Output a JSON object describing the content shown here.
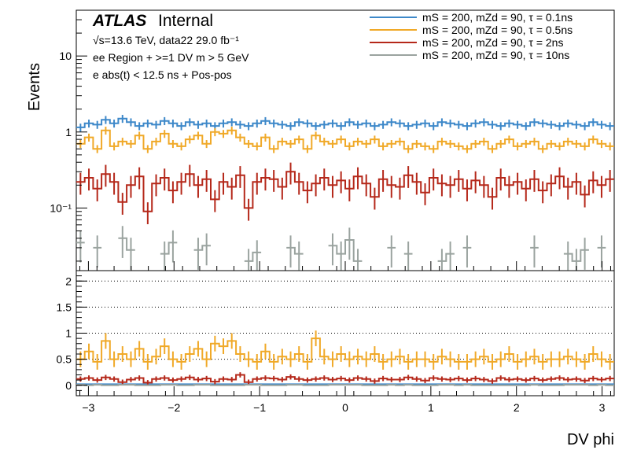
{
  "chart_data": {
    "type": "step",
    "atlas_label": "ATLAS",
    "atlas_status": "Internal",
    "info_lines": [
      "√s=13.6 TeV, data22 29.0 fb⁻¹",
      "ee Region + >=1 DV m > 5 GeV",
      "e abs(t) < 12.5 ns + Pos-pos"
    ],
    "xlabel": "DV phi",
    "ylabel": "Events",
    "x_range": [
      -3.1416,
      3.1416
    ],
    "x_ticks": [
      "−3",
      "−2",
      "−1",
      "0",
      "1",
      "2",
      "3"
    ],
    "top_panel": {
      "y_scale": "log",
      "y_range": [
        0.015,
        40
      ],
      "y_ticks": [
        "10⁻¹",
        "1",
        "10"
      ]
    },
    "ratio_panel": {
      "y_range": [
        -0.2,
        2.2
      ],
      "y_ticks": [
        "0",
        "0.5",
        "1",
        "1.5",
        "2"
      ],
      "gridlines": [
        0.5,
        1.0,
        1.5,
        2.0
      ]
    },
    "n_bins": 64,
    "series": [
      {
        "name": "mS = 200, mZd = 90, τ = 0.1ns",
        "color": "#3d88c9",
        "values": [
          1.15,
          1.3,
          1.25,
          1.45,
          1.3,
          1.5,
          1.35,
          1.2,
          1.3,
          1.25,
          1.4,
          1.3,
          1.2,
          1.35,
          1.25,
          1.3,
          1.2,
          1.3,
          1.35,
          1.25,
          1.2,
          1.3,
          1.4,
          1.3,
          1.25,
          1.2,
          1.35,
          1.3,
          1.2,
          1.25,
          1.3,
          1.2,
          1.35,
          1.25,
          1.3,
          1.2,
          1.25,
          1.35,
          1.3,
          1.2,
          1.25,
          1.3,
          1.2,
          1.35,
          1.3,
          1.25,
          1.2,
          1.3,
          1.35,
          1.25,
          1.2,
          1.3,
          1.25,
          1.2,
          1.35,
          1.3,
          1.25,
          1.2,
          1.3,
          1.25,
          1.2,
          1.35,
          1.25,
          1.2
        ],
        "ratio": [
          0.02,
          0.02,
          0.02,
          0.02,
          0.02,
          0.02,
          0.02,
          0.02,
          0.02,
          0.02,
          0.02,
          0.02,
          0.02,
          0.02,
          0.02,
          0.02,
          0.02,
          0.02,
          0.02,
          0.02,
          0.02,
          0.02,
          0.02,
          0.02,
          0.02,
          0.02,
          0.02,
          0.02,
          0.02,
          0.02,
          0.02,
          0.02,
          0.02,
          0.02,
          0.02,
          0.02,
          0.02,
          0.02,
          0.02,
          0.02,
          0.02,
          0.02,
          0.02,
          0.02,
          0.02,
          0.02,
          0.02,
          0.02,
          0.02,
          0.02,
          0.02,
          0.02,
          0.02,
          0.02,
          0.02,
          0.02,
          0.02,
          0.02,
          0.02,
          0.02,
          0.02,
          0.02,
          0.02,
          0.02
        ]
      },
      {
        "name": "mS = 200, mZd = 90, τ = 0.5ns",
        "color": "#f0a928",
        "values": [
          0.7,
          0.85,
          0.6,
          1.05,
          0.65,
          0.75,
          0.7,
          0.9,
          0.6,
          0.75,
          0.95,
          0.7,
          0.65,
          0.8,
          0.9,
          0.7,
          1.0,
          0.95,
          1.05,
          0.85,
          0.7,
          0.65,
          0.85,
          0.6,
          0.75,
          0.7,
          0.8,
          0.6,
          0.9,
          0.75,
          0.7,
          0.8,
          0.65,
          0.75,
          0.7,
          0.8,
          0.65,
          0.7,
          0.75,
          0.6,
          0.7,
          0.65,
          0.6,
          0.75,
          0.7,
          0.65,
          0.6,
          0.7,
          0.75,
          0.6,
          0.7,
          0.8,
          0.65,
          0.7,
          0.75,
          0.6,
          0.7,
          0.65,
          0.75,
          0.7,
          0.65,
          0.8,
          0.7,
          0.65
        ],
        "ratio": [
          0.5,
          0.65,
          0.45,
          0.85,
          0.5,
          0.6,
          0.5,
          0.7,
          0.45,
          0.55,
          0.75,
          0.5,
          0.45,
          0.6,
          0.7,
          0.5,
          0.8,
          0.75,
          0.85,
          0.6,
          0.5,
          0.45,
          0.65,
          0.45,
          0.55,
          0.5,
          0.6,
          0.45,
          0.9,
          0.55,
          0.5,
          0.6,
          0.5,
          0.55,
          0.5,
          0.6,
          0.45,
          0.5,
          0.55,
          0.45,
          0.5,
          0.5,
          0.45,
          0.55,
          0.5,
          0.45,
          0.45,
          0.5,
          0.55,
          0.45,
          0.5,
          0.6,
          0.45,
          0.5,
          0.55,
          0.45,
          0.5,
          0.5,
          0.55,
          0.5,
          0.45,
          0.6,
          0.5,
          0.45
        ]
      },
      {
        "name": "mS = 200, mZd = 90, τ = 2ns",
        "color": "#b5281a",
        "values": [
          0.22,
          0.25,
          0.18,
          0.28,
          0.22,
          0.12,
          0.2,
          0.26,
          0.09,
          0.21,
          0.25,
          0.17,
          0.22,
          0.28,
          0.2,
          0.24,
          0.13,
          0.22,
          0.19,
          0.27,
          0.1,
          0.22,
          0.25,
          0.24,
          0.19,
          0.3,
          0.22,
          0.17,
          0.21,
          0.25,
          0.2,
          0.23,
          0.18,
          0.26,
          0.21,
          0.14,
          0.24,
          0.2,
          0.19,
          0.27,
          0.22,
          0.16,
          0.25,
          0.21,
          0.2,
          0.24,
          0.18,
          0.23,
          0.2,
          0.14,
          0.25,
          0.2,
          0.22,
          0.18,
          0.24,
          0.17,
          0.21,
          0.26,
          0.19,
          0.22,
          0.15,
          0.23,
          0.2,
          0.24
        ],
        "ratio": [
          0.12,
          0.14,
          0.1,
          0.15,
          0.12,
          0.06,
          0.11,
          0.14,
          0.05,
          0.12,
          0.14,
          0.1,
          0.12,
          0.15,
          0.11,
          0.13,
          0.07,
          0.12,
          0.11,
          0.2,
          0.06,
          0.12,
          0.14,
          0.13,
          0.11,
          0.16,
          0.12,
          0.1,
          0.12,
          0.14,
          0.11,
          0.13,
          0.1,
          0.14,
          0.12,
          0.08,
          0.13,
          0.11,
          0.11,
          0.15,
          0.12,
          0.09,
          0.14,
          0.12,
          0.11,
          0.13,
          0.1,
          0.13,
          0.11,
          0.08,
          0.14,
          0.11,
          0.12,
          0.1,
          0.13,
          0.1,
          0.12,
          0.14,
          0.11,
          0.12,
          0.09,
          0.13,
          0.11,
          0.13
        ]
      },
      {
        "name": "mS = 200, mZd = 90, τ = 10ns",
        "color": "#9aa39f",
        "values": [
          0.035,
          0,
          0.03,
          0,
          0,
          0.04,
          0.028,
          0,
          0,
          0,
          0.025,
          0.035,
          0,
          0,
          0.028,
          0.032,
          0,
          0,
          0,
          0,
          0.02,
          0.026,
          0,
          0,
          0,
          0.03,
          0.025,
          0,
          0,
          0,
          0.032,
          0.025,
          0.038,
          0.02,
          0,
          0,
          0,
          0.03,
          0,
          0.025,
          0,
          0,
          0,
          0.02,
          0.025,
          0,
          0.03,
          0,
          0,
          0,
          0,
          0,
          0,
          0,
          0.03,
          0,
          0,
          0,
          0.025,
          0.02,
          0.028,
          0,
          0.03,
          0
        ],
        "ratio": [
          0.01,
          0,
          0.01,
          0,
          0,
          0.01,
          0.01,
          0,
          0,
          0,
          0.01,
          0.01,
          0,
          0,
          0.01,
          0.01,
          0,
          0,
          0,
          0,
          0.01,
          0.01,
          0,
          0,
          0,
          0.01,
          0.01,
          0,
          0,
          0,
          0.01,
          0.01,
          0.01,
          0.01,
          0,
          0,
          0,
          0.01,
          0,
          0.01,
          0,
          0,
          0,
          0.01,
          0.01,
          0,
          0.01,
          0,
          0,
          0,
          0,
          0,
          0,
          0,
          0.01,
          0,
          0,
          0,
          0.01,
          0.01,
          0.01,
          0,
          0.01,
          0
        ]
      }
    ]
  }
}
